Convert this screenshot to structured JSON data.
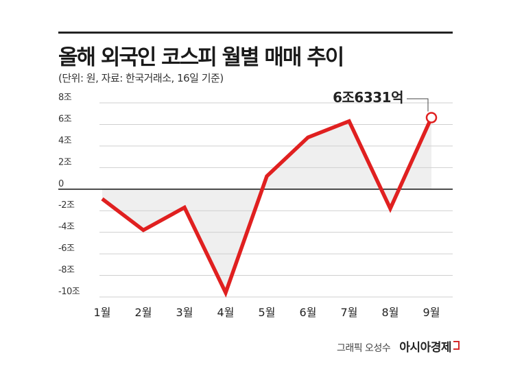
{
  "title": "올해 외국인 코스피 월별 매매 추이",
  "subtitle": "(단위: 원, 자료: 한국거래소, 16일 기준)",
  "callout": "6조6331억",
  "credit": "그래픽 오성수",
  "brand": "아시아경제",
  "colors": {
    "line": "#e02020",
    "fill": "#efefef",
    "grid": "#cfcfcf",
    "zero": "#222222"
  },
  "chart_data": {
    "type": "line",
    "categories": [
      "1월",
      "2월",
      "3월",
      "4월",
      "5월",
      "6월",
      "7월",
      "8월",
      "9월"
    ],
    "series": [
      {
        "values": [
          -0.9,
          -3.8,
          -1.7,
          -9.6,
          1.2,
          4.8,
          6.3,
          -1.8,
          6.6331
        ]
      }
    ],
    "ylim": [
      -10,
      8
    ],
    "yticks": [
      8,
      6,
      4,
      2,
      0,
      -2,
      -4,
      -6,
      -8,
      -10
    ],
    "ytick_labels": [
      "8조",
      "6조",
      "4조",
      "2조",
      "0",
      "-2조",
      "-4조",
      "-6조",
      "-8조",
      "-10조"
    ],
    "highlight_index": 8,
    "annotation": "6조6331억",
    "grid": true,
    "fill_to_zero": true
  }
}
